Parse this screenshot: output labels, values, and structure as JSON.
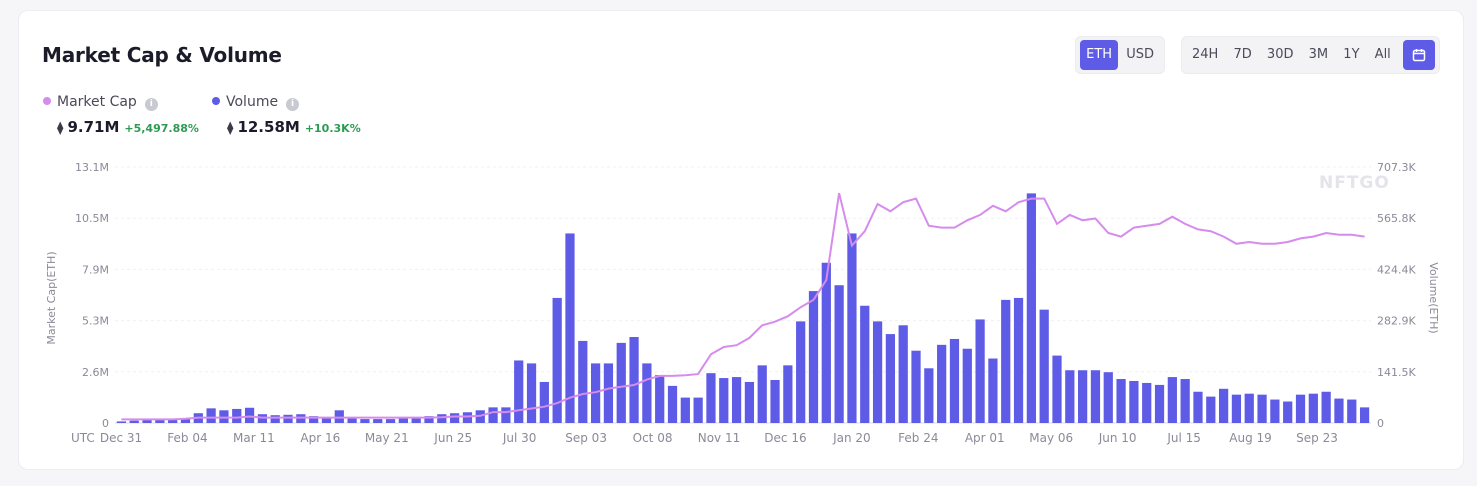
{
  "header": {
    "title": "Market Cap & Volume",
    "currency_options": [
      "ETH",
      "USD"
    ],
    "currency_selected": "ETH",
    "range_options": [
      "24H",
      "7D",
      "30D",
      "3M",
      "1Y",
      "All"
    ],
    "calendar_icon": "calendar-icon"
  },
  "legend": {
    "market_cap": {
      "label": "Market Cap",
      "value": "9.71M",
      "change": "+5,497.88%",
      "currency_symbol": "⧫"
    },
    "volume": {
      "label": "Volume",
      "value": "12.58M",
      "change": "+10.3K%",
      "currency_symbol": "⧫"
    },
    "info_icon": "i"
  },
  "colors": {
    "market_cap_line": "#d58cec",
    "volume_bar": "#5e5ce6",
    "accent": "#5e5ce6",
    "change_positive": "#2e9b54"
  },
  "watermark": "NFTGO",
  "chart_data": {
    "type": "bar",
    "timezone_label": "UTC",
    "x_tick_labels": [
      "Dec 31",
      "Feb 04",
      "Mar 11",
      "Apr 16",
      "May 21",
      "Jun 25",
      "Jul 30",
      "Sep 03",
      "Oct 08",
      "Nov 11",
      "Dec 16",
      "Jan 20",
      "Feb 24",
      "Apr 01",
      "May 06",
      "Jun 10",
      "Jul 15",
      "Aug 19",
      "Sep 23"
    ],
    "left_axis": {
      "label": "Market Cap(ETH)",
      "ticks": [
        "0",
        "2.6M",
        "5.3M",
        "7.9M",
        "10.5M",
        "13.1M"
      ],
      "range": [
        0,
        13.1
      ]
    },
    "right_axis": {
      "label": "Volume(ETH)",
      "ticks": [
        "0",
        "141.5K",
        "282.9K",
        "424.4K",
        "565.8K",
        "707.3K"
      ],
      "range": [
        0,
        707.3
      ]
    },
    "series": [
      {
        "name": "Volume",
        "type": "bar",
        "axis": "left",
        "units": "M ETH",
        "values": [
          0.08,
          0.12,
          0.15,
          0.15,
          0.18,
          0.2,
          0.5,
          0.75,
          0.65,
          0.72,
          0.78,
          0.45,
          0.4,
          0.42,
          0.45,
          0.35,
          0.3,
          0.65,
          0.3,
          0.2,
          0.2,
          0.2,
          0.25,
          0.3,
          0.35,
          0.45,
          0.5,
          0.55,
          0.65,
          0.8,
          0.8,
          3.2,
          3.05,
          2.1,
          6.4,
          9.7,
          4.2,
          3.05,
          3.05,
          4.1,
          4.4,
          3.05,
          2.45,
          1.9,
          1.3,
          1.3,
          2.55,
          2.3,
          2.35,
          2.1,
          2.95,
          2.2,
          2.95,
          5.2,
          6.75,
          8.2,
          7.05,
          9.7,
          6.0,
          5.2,
          4.55,
          5.0,
          3.7,
          2.8,
          4.0,
          4.3,
          3.8,
          5.3,
          3.3,
          6.3,
          6.4,
          11.75,
          5.8,
          3.45,
          2.7,
          2.7,
          2.7,
          2.6,
          2.25,
          2.15,
          2.05,
          1.95,
          2.35,
          2.25,
          1.6,
          1.35,
          1.75,
          1.45,
          1.5,
          1.45,
          1.2,
          1.1,
          1.45,
          1.5,
          1.6,
          1.25,
          1.2,
          0.8
        ]
      },
      {
        "name": "Market Cap",
        "type": "line",
        "axis": "right",
        "units": "K ETH",
        "values": [
          10,
          10,
          10,
          10,
          10,
          12,
          15,
          15,
          15,
          15,
          18,
          15,
          15,
          15,
          15,
          15,
          15,
          15,
          15,
          15,
          15,
          15,
          15,
          15,
          15,
          16,
          18,
          18,
          20,
          30,
          30,
          35,
          40,
          45,
          55,
          70,
          80,
          85,
          95,
          100,
          105,
          120,
          130,
          130,
          132,
          135,
          190,
          210,
          215,
          235,
          270,
          280,
          295,
          320,
          340,
          395,
          635,
          490,
          530,
          605,
          585,
          610,
          620,
          545,
          540,
          540,
          560,
          575,
          600,
          585,
          610,
          620,
          620,
          550,
          575,
          560,
          565,
          525,
          515,
          540,
          545,
          550,
          570,
          550,
          535,
          530,
          515,
          495,
          500,
          495,
          495,
          500,
          510,
          515,
          525,
          520,
          520,
          515
        ]
      }
    ]
  }
}
